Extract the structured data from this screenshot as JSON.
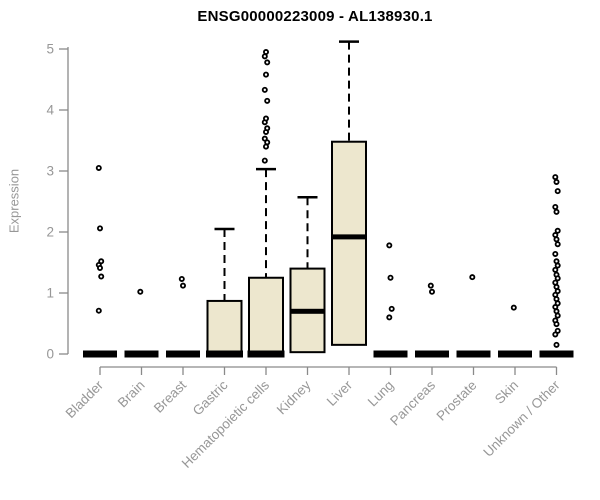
{
  "page": {
    "background": "#ffffff"
  },
  "chart_data": {
    "type": "boxplot",
    "title": "ENSG00000223009 - AL138930.1",
    "ylabel": "Expression",
    "xlabel": "",
    "ylim": [
      0,
      5.25
    ],
    "yticks": [
      0,
      1,
      2,
      3,
      4,
      5
    ],
    "grid": false,
    "legend": "none",
    "colors": {
      "box_fill": "#EDE7CE",
      "box_stroke": "#000000",
      "axis": "#8A8A8A",
      "tick_label": "#979797",
      "title": "#000000"
    },
    "categories": [
      {
        "label": "Bladder",
        "collapsed": true,
        "q1": 0,
        "median": 0,
        "q3": 0,
        "whisker_low": 0,
        "whisker_high": 0,
        "outliers": [
          3.05,
          2.06,
          1.52,
          1.46,
          1.41,
          1.27,
          0.71
        ]
      },
      {
        "label": "Brain",
        "collapsed": true,
        "q1": 0,
        "median": 0,
        "q3": 0,
        "whisker_low": 0,
        "whisker_high": 0,
        "outliers": [
          1.02
        ]
      },
      {
        "label": "Breast",
        "collapsed": true,
        "q1": 0,
        "median": 0,
        "q3": 0,
        "whisker_low": 0,
        "whisker_high": 0,
        "outliers": [
          1.23,
          1.12
        ]
      },
      {
        "label": "Gastric",
        "collapsed": false,
        "q1": 0,
        "median": 0,
        "q3": 0.87,
        "whisker_low": 0,
        "whisker_high": 2.05,
        "outliers": []
      },
      {
        "label": "Hematopoietic cells",
        "collapsed": false,
        "q1": 0,
        "median": 0,
        "q3": 1.25,
        "whisker_low": 0,
        "whisker_high": 3.03,
        "outliers": [
          3.17,
          3.4,
          3.47,
          3.53,
          3.64,
          3.7,
          3.8,
          3.86,
          4.15,
          4.33,
          4.58,
          4.78,
          4.88,
          4.95
        ]
      },
      {
        "label": "Kidney",
        "collapsed": false,
        "q1": 0.03,
        "median": 0.7,
        "q3": 1.4,
        "whisker_low": 0.03,
        "whisker_high": 2.57,
        "outliers": []
      },
      {
        "label": "Liver",
        "collapsed": false,
        "q1": 0.15,
        "median": 1.92,
        "q3": 3.48,
        "whisker_low": 0.15,
        "whisker_high": 5.12,
        "outliers": []
      },
      {
        "label": "Lung",
        "collapsed": true,
        "q1": 0,
        "median": 0,
        "q3": 0,
        "whisker_low": 0,
        "whisker_high": 0,
        "outliers": [
          1.78,
          1.25,
          0.74,
          0.6
        ]
      },
      {
        "label": "Pancreas",
        "collapsed": true,
        "q1": 0,
        "median": 0,
        "q3": 0,
        "whisker_low": 0,
        "whisker_high": 0,
        "outliers": [
          1.12,
          1.02
        ]
      },
      {
        "label": "Prostate",
        "collapsed": true,
        "q1": 0,
        "median": 0,
        "q3": 0,
        "whisker_low": 0,
        "whisker_high": 0,
        "outliers": [
          1.26
        ]
      },
      {
        "label": "Skin",
        "collapsed": true,
        "q1": 0,
        "median": 0,
        "q3": 0,
        "whisker_low": 0,
        "whisker_high": 0,
        "outliers": [
          0.76
        ]
      },
      {
        "label": "Unknown / Other",
        "collapsed": true,
        "q1": 0,
        "median": 0,
        "q3": 0,
        "whisker_low": 0,
        "whisker_high": 0,
        "outliers": [
          2.9,
          2.82,
          2.67,
          2.41,
          2.33,
          2.02,
          1.95,
          1.88,
          1.8,
          1.64,
          1.52,
          1.45,
          1.38,
          1.3,
          1.24,
          1.17,
          1.1,
          1.03,
          0.97,
          0.9,
          0.83,
          0.77,
          0.7,
          0.63,
          0.55,
          0.49,
          0.38,
          0.32,
          0.15
        ]
      }
    ]
  }
}
